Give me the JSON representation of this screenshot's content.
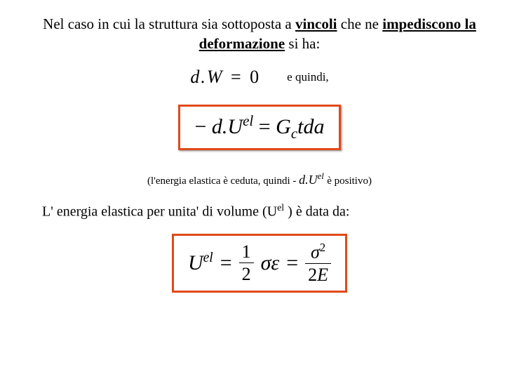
{
  "colors": {
    "box_border": "#e04a1a",
    "text": "#000000",
    "background": "#ffffff"
  },
  "intro": {
    "part1": "Nel caso in cui la struttura sia sottoposta a ",
    "bold1": "vincoli",
    "part2": " che ne ",
    "bold2": "impediscono la deformazione",
    "part3": " si ha:"
  },
  "eq1": {
    "lhs_d": "d",
    "lhs_dot": ".",
    "lhs_W": "W",
    "eq": "=",
    "rhs": "0",
    "trailer": "e quindi,"
  },
  "eq2": {
    "minus": "−",
    "d": "d",
    "dot": ".",
    "U": "U",
    "sup": "el",
    "eq": "=",
    "G": "G",
    "sub_c": "c",
    "t": "t",
    "da": "da"
  },
  "paren": {
    "pre": "(l'energia elastica è ceduta, quindi - ",
    "inline": {
      "d": "d",
      "dot": ".",
      "U": "U",
      "sup": "el"
    },
    "post": " è positivo)"
  },
  "bodyline": {
    "pre": "L' energia elastica per unita' di volume (U",
    "sup": "el",
    "post": " ) è data da:"
  },
  "eq3": {
    "U": "U",
    "Usup": "el",
    "eq": "=",
    "half_num": "1",
    "half_den": "2",
    "sigma": "σ",
    "eps": "ε",
    "sigma2_num": "σ",
    "sigma2_exp": "2",
    "den_2E_2": "2",
    "den_2E_E": "E"
  }
}
